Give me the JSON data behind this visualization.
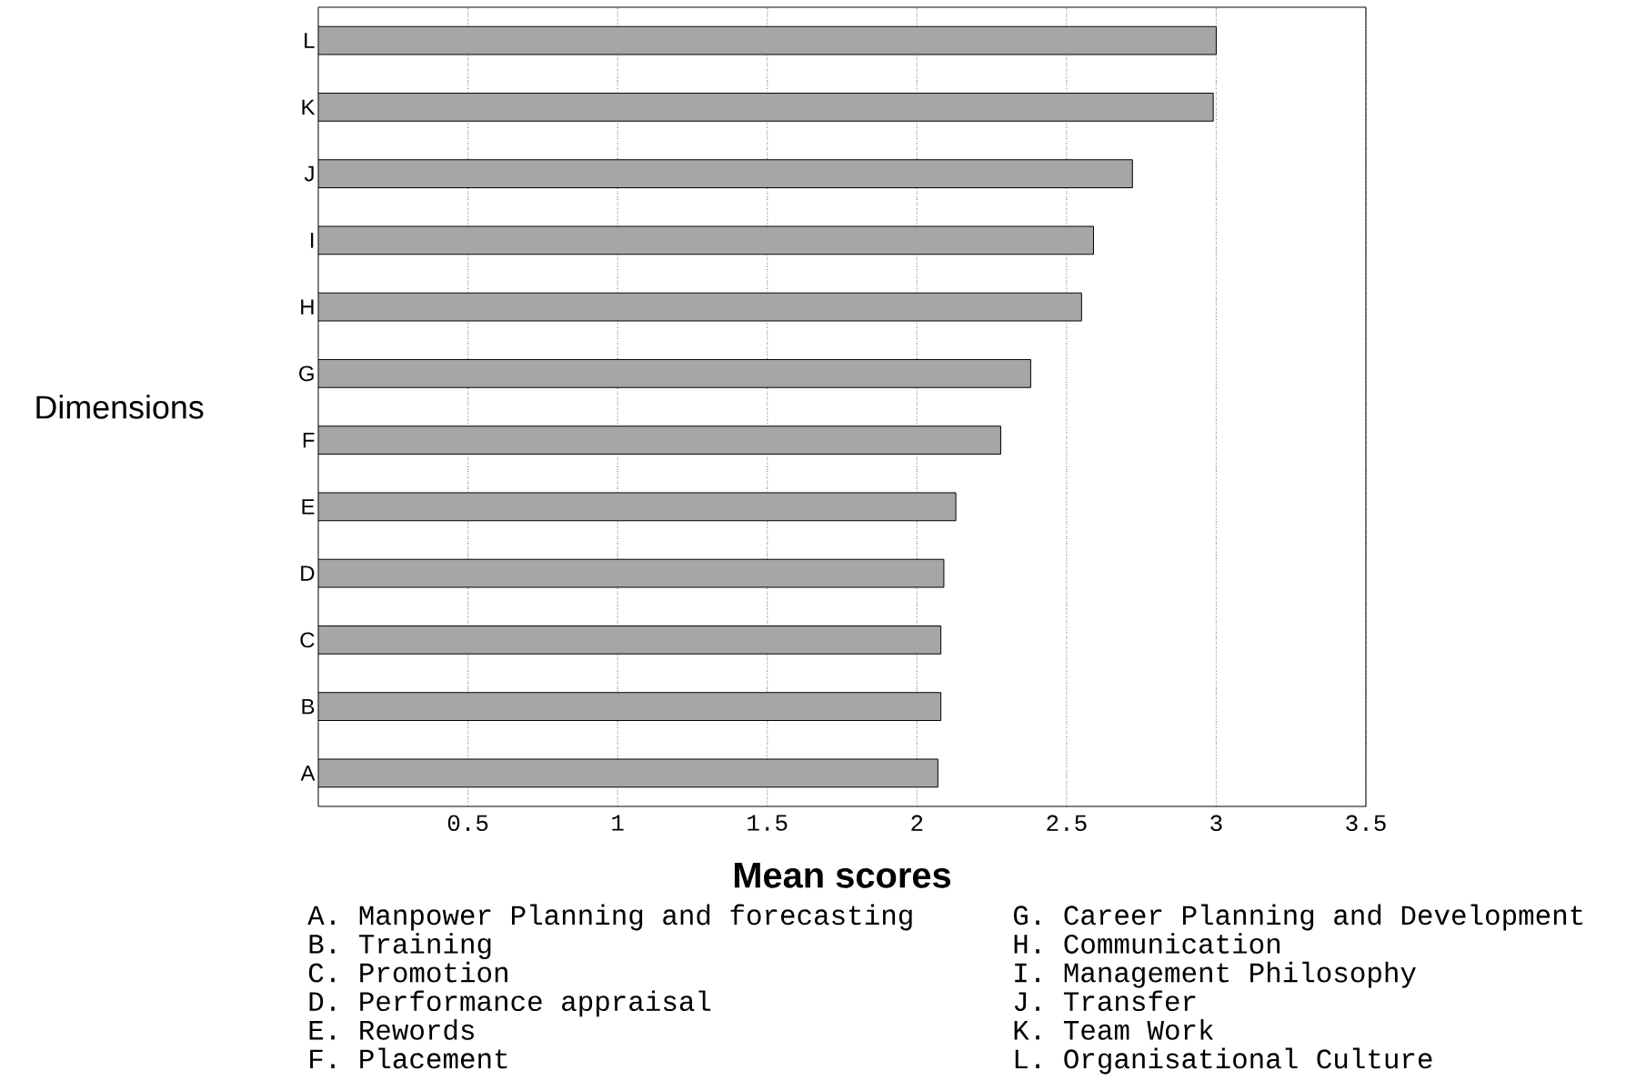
{
  "chart_data": {
    "type": "bar",
    "orientation": "horizontal",
    "xlabel": "Mean scores",
    "ylabel": "Dimensions",
    "categories": [
      "L",
      "K",
      "J",
      "I",
      "H",
      "G",
      "F",
      "E",
      "D",
      "C",
      "B",
      "A"
    ],
    "values": [
      3.0,
      2.99,
      2.72,
      2.59,
      2.55,
      2.38,
      2.28,
      2.13,
      2.09,
      2.08,
      2.08,
      2.07
    ],
    "color": "#a6a6a6",
    "xlim": [
      0,
      3.5
    ],
    "xticks": [
      0.5,
      1,
      1.5,
      2,
      2.5,
      3,
      3.5
    ],
    "grid": "x",
    "annotations": [
      "A.   Manpower Planning and forecasting",
      "B.   Training",
      "C.   Promotion",
      "D.   Performance appraisal",
      "E.   Rewords",
      "F.   Placement",
      "G.   Career Planning and Development",
      "H.   Communication",
      "I.   Management Philosophy",
      "J.   Transfer",
      "K.   Team Work",
      "L.   Organisational Culture"
    ]
  }
}
